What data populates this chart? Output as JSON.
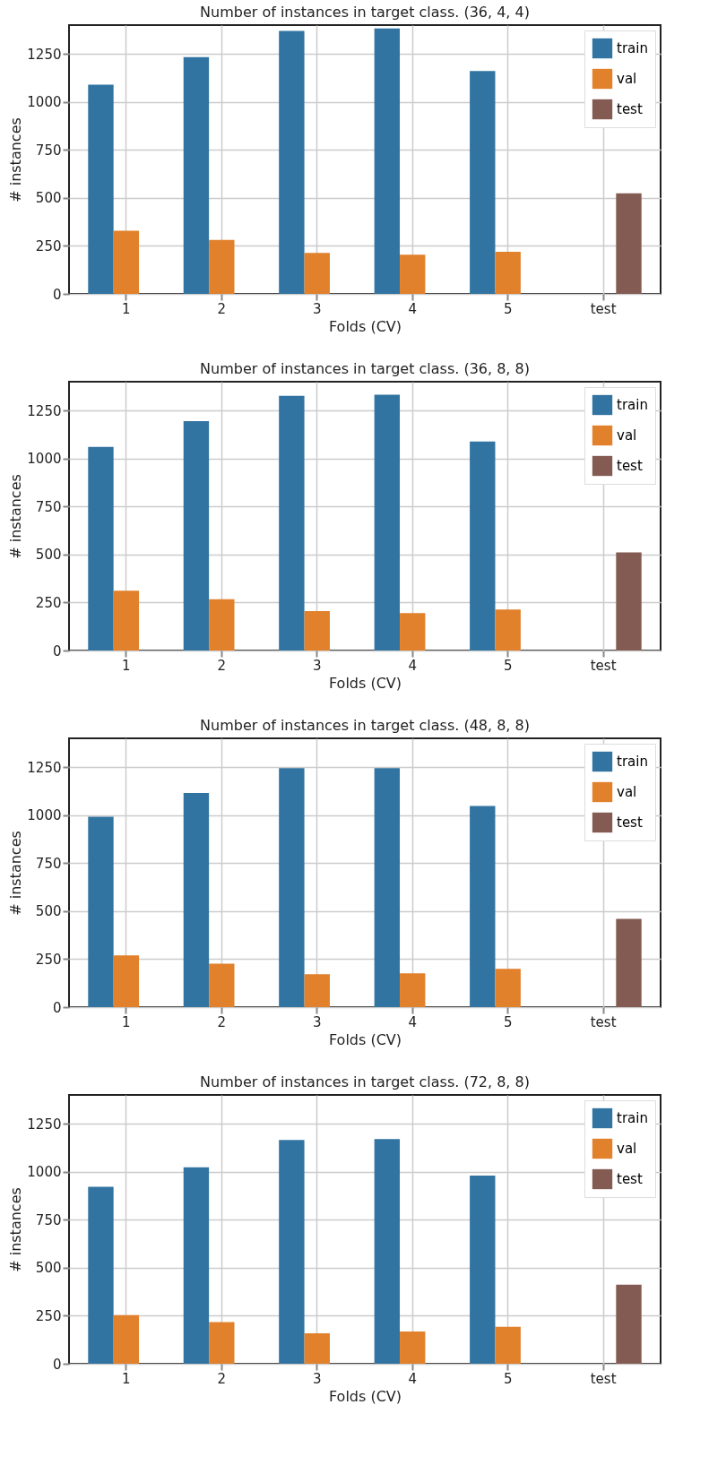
{
  "chart_data": [
    {
      "type": "bar",
      "title": "Number of instances in target class. (36, 4, 4)",
      "xlabel": "Folds (CV)",
      "ylabel": "# instances",
      "categories": [
        "1",
        "2",
        "3",
        "4",
        "5",
        "test"
      ],
      "series": [
        {
          "name": "train",
          "color": "#3274a1",
          "values": [
            1090,
            1233,
            1370,
            1382,
            1161,
            null
          ]
        },
        {
          "name": "val",
          "color": "#e1812c",
          "values": [
            329,
            281,
            214,
            204,
            219,
            null
          ]
        },
        {
          "name": "test",
          "color": "#845b53",
          "values": [
            null,
            null,
            null,
            null,
            null,
            524
          ]
        }
      ],
      "ylim": [
        0,
        1400
      ],
      "yticks": [
        0,
        250,
        500,
        750,
        1000,
        1250
      ],
      "grid": true,
      "legend": "top right"
    },
    {
      "type": "bar",
      "title": "Number of instances in target class. (36, 8, 8)",
      "xlabel": "Folds (CV)",
      "ylabel": "# instances",
      "categories": [
        "1",
        "2",
        "3",
        "4",
        "5",
        "test"
      ],
      "series": [
        {
          "name": "train",
          "color": "#3274a1",
          "values": [
            1060,
            1195,
            1327,
            1332,
            1089,
            null
          ]
        },
        {
          "name": "val",
          "color": "#e1812c",
          "values": [
            311,
            267,
            205,
            195,
            214,
            null
          ]
        },
        {
          "name": "test",
          "color": "#845b53",
          "values": [
            null,
            null,
            null,
            null,
            null,
            511
          ]
        }
      ],
      "ylim": [
        0,
        1400
      ],
      "yticks": [
        0,
        250,
        500,
        750,
        1000,
        1250
      ],
      "grid": true,
      "legend": "top right"
    },
    {
      "type": "bar",
      "title": "Number of instances in target class. (48, 8, 8)",
      "xlabel": "Folds (CV)",
      "ylabel": "# instances",
      "categories": [
        "1",
        "2",
        "3",
        "4",
        "5",
        "test"
      ],
      "series": [
        {
          "name": "train",
          "color": "#3274a1",
          "values": [
            992,
            1115,
            1245,
            1245,
            1048,
            null
          ]
        },
        {
          "name": "val",
          "color": "#e1812c",
          "values": [
            270,
            226,
            171,
            176,
            200,
            null
          ]
        },
        {
          "name": "test",
          "color": "#845b53",
          "values": [
            null,
            null,
            null,
            null,
            null,
            460
          ]
        }
      ],
      "ylim": [
        0,
        1400
      ],
      "yticks": [
        0,
        250,
        500,
        750,
        1000,
        1250
      ],
      "grid": true,
      "legend": "top right"
    },
    {
      "type": "bar",
      "title": "Number of instances in target class. (72, 8, 8)",
      "xlabel": "Folds (CV)",
      "ylabel": "# instances",
      "categories": [
        "1",
        "2",
        "3",
        "4",
        "5",
        "test"
      ],
      "series": [
        {
          "name": "train",
          "color": "#3274a1",
          "values": [
            922,
            1023,
            1165,
            1170,
            980,
            null
          ]
        },
        {
          "name": "val",
          "color": "#e1812c",
          "values": [
            253,
            217,
            159,
            168,
            192,
            null
          ]
        },
        {
          "name": "test",
          "color": "#845b53",
          "values": [
            null,
            null,
            null,
            null,
            null,
            412
          ]
        }
      ],
      "ylim": [
        0,
        1400
      ],
      "yticks": [
        0,
        250,
        500,
        750,
        1000,
        1250
      ],
      "grid": true,
      "legend": "top right"
    }
  ]
}
